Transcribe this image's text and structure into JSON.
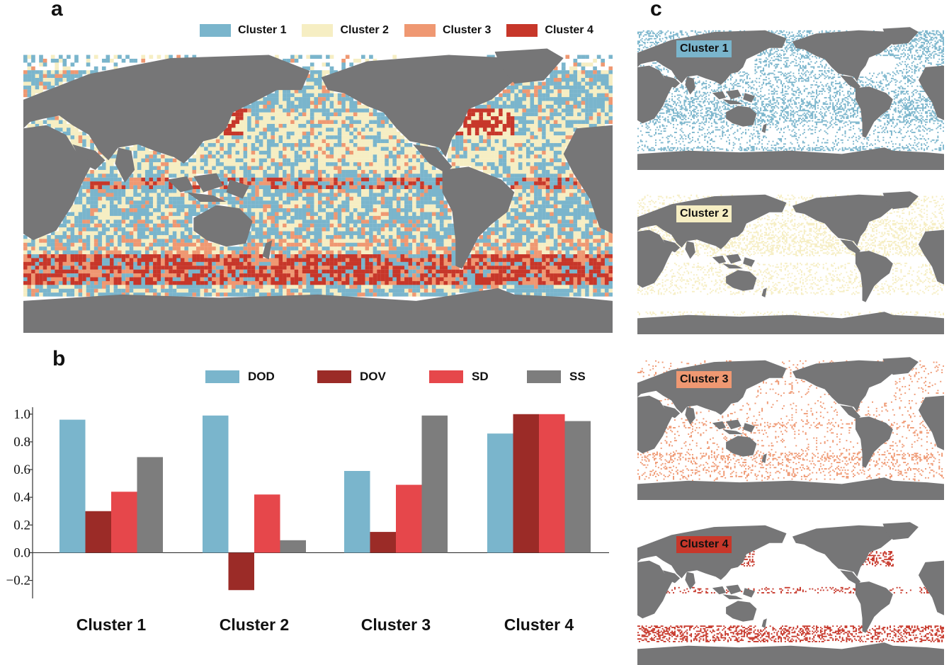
{
  "panels": {
    "a": "a",
    "b": "b",
    "c": "c"
  },
  "colors": {
    "cluster1": "#7ab5cc",
    "cluster2": "#f6eec3",
    "cluster3": "#ef9872",
    "cluster4": "#c7372a",
    "land": "#767677",
    "DOD": "#7ab5cc",
    "DOV": "#9b2b27",
    "SD": "#e6474b",
    "SS": "#7d7d7d"
  },
  "map_legend": [
    "Cluster 1",
    "Cluster 2",
    "Cluster 3",
    "Cluster 4"
  ],
  "small_maps": [
    {
      "label": "Cluster 1"
    },
    {
      "label": "Cluster 2"
    },
    {
      "label": "Cluster 3"
    },
    {
      "label": "Cluster 4"
    }
  ],
  "chart_data": {
    "type": "bar",
    "title": "",
    "xlabel": "",
    "ylabel": "",
    "categories": [
      "Cluster 1",
      "Cluster 2",
      "Cluster 3",
      "Cluster 4"
    ],
    "series": [
      {
        "name": "DOD",
        "values": [
          0.96,
          0.99,
          0.59,
          0.86
        ]
      },
      {
        "name": "DOV",
        "values": [
          0.3,
          -0.27,
          0.15,
          1.0
        ]
      },
      {
        "name": "SD",
        "values": [
          0.44,
          0.42,
          0.49,
          1.0
        ]
      },
      {
        "name": "SS",
        "values": [
          0.69,
          0.09,
          0.99,
          0.95
        ]
      }
    ],
    "ylim": [
      -0.33,
      1.05
    ],
    "yticks": [
      "1.0",
      "0.8",
      "0.6",
      "0.4",
      "0.2",
      "0.0",
      "−0.2"
    ],
    "ytick_values": [
      1.0,
      0.8,
      0.6,
      0.4,
      0.2,
      0.0,
      -0.2
    ],
    "legend": [
      "DOD",
      "DOV",
      "SD",
      "SS"
    ],
    "legend_position": "top"
  }
}
